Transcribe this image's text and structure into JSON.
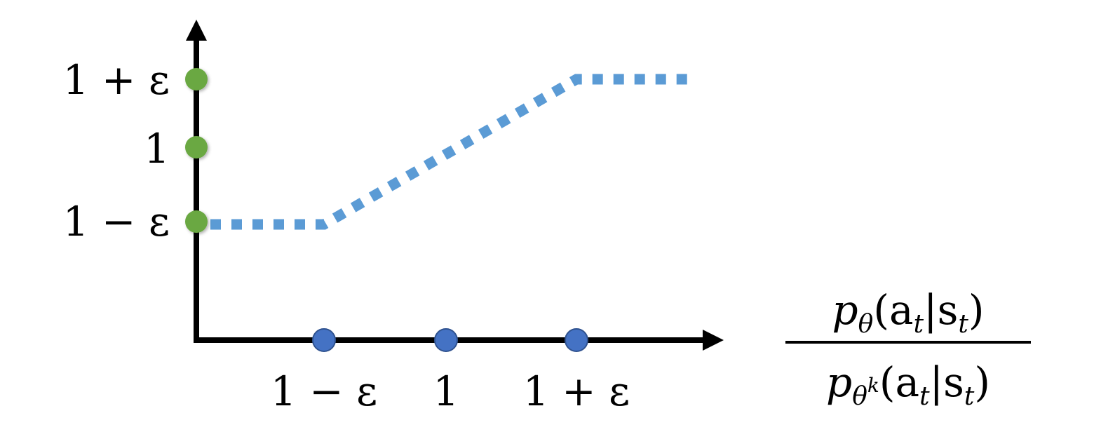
{
  "diagram": {
    "y_ticks": [
      "1 + ε",
      "1",
      "1 − ε"
    ],
    "x_ticks": [
      "1 − ε",
      "1",
      "1 + ε"
    ],
    "x_axis_label": {
      "numerator": {
        "p": "p",
        "sub": "θ",
        "args": "(a",
        "args_sub": "t",
        "bar": "|s",
        "bar_sub": "t",
        "close": ")"
      },
      "denominator": {
        "p": "p",
        "sub": "θ",
        "sup": "k",
        "args": "(a",
        "args_sub": "t",
        "bar": "|s",
        "bar_sub": "t",
        "close": ")"
      }
    },
    "clip_curve": [
      [
        0,
        "1 − ε"
      ],
      [
        "1 − ε",
        "1 − ε"
      ],
      [
        "1 + ε",
        "1 + ε"
      ],
      [
        "end",
        "1 + ε"
      ]
    ],
    "colors": {
      "axis": "#000000",
      "y_points": "#6aa843",
      "x_points": "#4472c4",
      "curve": "#5b9bd5"
    }
  }
}
